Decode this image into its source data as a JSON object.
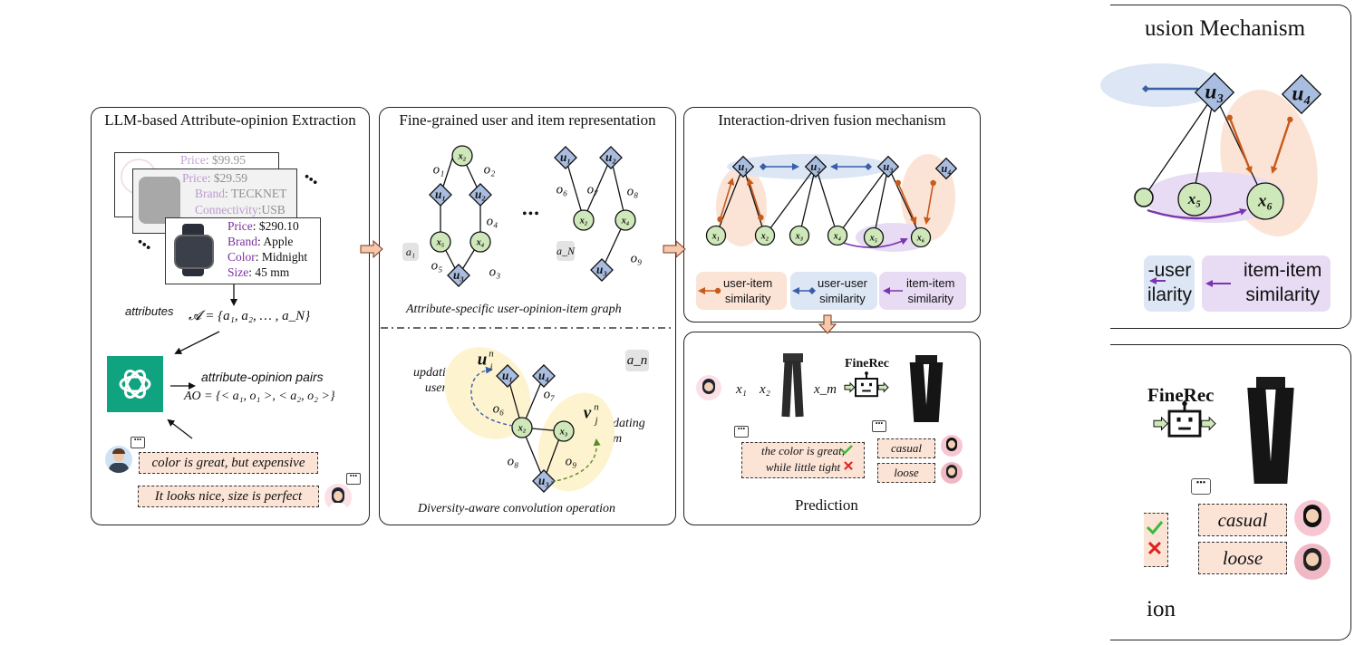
{
  "panels": {
    "p1": {
      "title": "LLM-based Attribute-opinion Extraction"
    },
    "p2": {
      "title": "Fine-grained user and item representation",
      "caption_top": "Attribute-specific user-opinion-item graph",
      "caption_bottom": "Diversity-aware convolution operation"
    },
    "p3": {
      "title": "Interaction-driven fusion mechanism"
    },
    "p4": {
      "title": "Prediction"
    },
    "zoom1": {
      "title": "usion Mechanism"
    },
    "zoom2": {
      "title": "ion"
    }
  },
  "products": {
    "card1": [
      {
        "label": "Price",
        "value": "$99.95"
      }
    ],
    "card2": [
      {
        "label": "Price",
        "value": "$29.59"
      },
      {
        "label": "Brand",
        "value": "TECKNET"
      },
      {
        "label": "Connectivity",
        "value": "USB"
      }
    ],
    "card3": [
      {
        "label": "Price",
        "value": "$290.10"
      },
      {
        "label": "Brand",
        "value": "Apple"
      },
      {
        "label": "Color",
        "value": "Midnight"
      },
      {
        "label": "Size",
        "value": "45 mm"
      }
    ]
  },
  "extraction": {
    "attributes_label": "attributes",
    "attributes_formula": "𝓐 = {a₁, a₂, … , a_N}",
    "pairs_label": "attribute-opinion pairs",
    "pairs_formula": "AO = {< a₁, o₁ >, < a₂, o₂ >}",
    "review1": "color is great, but expensive",
    "review2": "It looks nice, size is perfect"
  },
  "graph_labels": {
    "a1": "a₁",
    "aN": "a_N",
    "an": "a_n",
    "ellipsis": "•••",
    "updating_user": "updating\nuser",
    "updating_item": "updating\nitem",
    "u_sym": "u",
    "v_sym": "v"
  },
  "legend": {
    "user_item": "user-item\nsimilarity",
    "user_user": "user-user\nsimilarity",
    "item_item": "item-item\nsimilarity"
  },
  "prediction": {
    "seq": [
      "x₁",
      "x₂",
      "x_m"
    ],
    "model": "FineRec",
    "review": "the color is great,\nwhile little tight",
    "tags": [
      "casual",
      "loose"
    ]
  },
  "zoom_legend": {
    "user_user_partial": "-user\nilarity",
    "item_item": "item-item\nsimilarity"
  },
  "colors": {
    "node_user": "#a9bde0",
    "node_item": "#cfe8b9",
    "orange": "#c85a1a",
    "blue": "#3a5ea8",
    "purple": "#7b35b0",
    "peach": "#fbe3d6",
    "light_blue": "#dde6f4",
    "light_purple": "#e7dcf3",
    "yellow": "#fdf3cf",
    "openai_green": "#10a37f"
  }
}
